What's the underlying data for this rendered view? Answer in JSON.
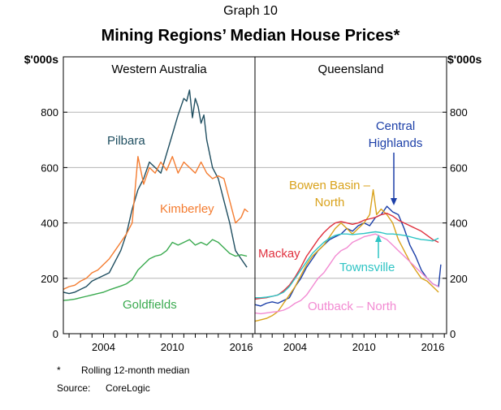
{
  "graph_number": "Graph 10",
  "title": "Mining Regions’ Median House Prices*",
  "footnote_mark": "*",
  "footnote_text": "Rolling 12-month median",
  "source_label": "Source:",
  "source_text": "CoreLogic",
  "chart_data": [
    {
      "type": "line",
      "panel": "Western Australia",
      "ylabel": "$'000s",
      "ylim": [
        0,
        1000
      ],
      "yticks": [
        0,
        200,
        400,
        600,
        800
      ],
      "xlim": [
        2000.5,
        2017.2
      ],
      "xticks": [
        2004,
        2010,
        2016
      ],
      "grid": true,
      "series": [
        {
          "name": "Pilbara",
          "color": "#1f4e60",
          "x": [
            2000.5,
            2001,
            2001.5,
            2002,
            2002.5,
            2003,
            2003.5,
            2004,
            2004.5,
            2005,
            2005.5,
            2006,
            2006.5,
            2007,
            2007.5,
            2008,
            2008.5,
            2009,
            2009.5,
            2010,
            2010.5,
            2011,
            2011.25,
            2011.5,
            2011.75,
            2012,
            2012.25,
            2012.5,
            2012.75,
            2013,
            2013.5,
            2014,
            2014.5,
            2015,
            2015.5,
            2016,
            2016.5
          ],
          "y": [
            150,
            145,
            150,
            160,
            170,
            190,
            200,
            210,
            220,
            260,
            300,
            360,
            450,
            520,
            560,
            620,
            600,
            580,
            650,
            720,
            790,
            850,
            840,
            880,
            780,
            850,
            820,
            760,
            790,
            700,
            600,
            560,
            480,
            400,
            300,
            270,
            240
          ]
        },
        {
          "name": "Kimberley",
          "color": "#f47c30",
          "x": [
            2000.5,
            2001,
            2001.5,
            2002,
            2002.5,
            2003,
            2003.5,
            2004,
            2004.5,
            2005,
            2005.5,
            2006,
            2006.5,
            2007,
            2007.5,
            2008,
            2008.5,
            2009,
            2009.5,
            2010,
            2010.5,
            2011,
            2011.5,
            2012,
            2012.5,
            2013,
            2013.5,
            2014,
            2014.5,
            2015,
            2015.5,
            2016,
            2016.3,
            2016.6
          ],
          "y": [
            160,
            170,
            175,
            190,
            200,
            220,
            230,
            250,
            270,
            300,
            330,
            360,
            400,
            640,
            540,
            600,
            580,
            620,
            590,
            640,
            580,
            620,
            600,
            580,
            620,
            580,
            560,
            570,
            560,
            480,
            400,
            420,
            450,
            440
          ]
        },
        {
          "name": "Goldfields",
          "color": "#3aaa4f",
          "x": [
            2000.5,
            2001,
            2001.5,
            2002,
            2002.5,
            2003,
            2003.5,
            2004,
            2004.5,
            2005,
            2005.5,
            2006,
            2006.5,
            2007,
            2007.5,
            2008,
            2008.5,
            2009,
            2009.5,
            2010,
            2010.5,
            2011,
            2011.5,
            2012,
            2012.5,
            2013,
            2013.5,
            2014,
            2014.5,
            2015,
            2015.5,
            2016,
            2016.5
          ],
          "y": [
            120,
            122,
            125,
            130,
            135,
            140,
            145,
            150,
            158,
            165,
            172,
            180,
            195,
            230,
            250,
            270,
            280,
            285,
            300,
            330,
            320,
            330,
            340,
            320,
            330,
            320,
            340,
            330,
            310,
            290,
            280,
            285,
            280
          ]
        }
      ],
      "annotations": [
        {
          "text": "Pilbara",
          "color": "#1f4e60"
        },
        {
          "text": "Kimberley",
          "color": "#f47c30"
        },
        {
          "text": "Goldfields",
          "color": "#3aaa4f"
        }
      ]
    },
    {
      "type": "line",
      "panel": "Queensland",
      "ylabel": "$'000s",
      "ylim": [
        0,
        1000
      ],
      "yticks": [
        0,
        200,
        400,
        600,
        800
      ],
      "xlim": [
        2000.5,
        2017.2
      ],
      "xticks": [
        2004,
        2010,
        2016
      ],
      "grid": true,
      "series": [
        {
          "name": "Central Highlands",
          "color": "#1c3fa8",
          "x": [
            2000.5,
            2001,
            2001.5,
            2002,
            2002.5,
            2003,
            2003.5,
            2004,
            2004.5,
            2005,
            2005.5,
            2006,
            2006.5,
            2007,
            2007.5,
            2008,
            2008.5,
            2009,
            2009.5,
            2010,
            2010.5,
            2011,
            2011.5,
            2012,
            2012.5,
            2013,
            2013.5,
            2014,
            2014.5,
            2015,
            2015.5,
            2016,
            2016.5,
            2016.7
          ],
          "y": [
            105,
            100,
            110,
            115,
            110,
            120,
            130,
            170,
            200,
            240,
            270,
            300,
            320,
            340,
            350,
            360,
            380,
            370,
            390,
            400,
            390,
            420,
            430,
            460,
            440,
            430,
            380,
            320,
            280,
            230,
            200,
            180,
            170,
            250
          ]
        },
        {
          "name": "Bowen Basin – North",
          "color": "#d9a21b",
          "x": [
            2000.5,
            2001,
            2001.5,
            2002,
            2002.5,
            2003,
            2003.5,
            2004,
            2004.5,
            2005,
            2005.5,
            2006,
            2006.5,
            2007,
            2007.5,
            2008,
            2008.5,
            2009,
            2009.5,
            2010,
            2010.5,
            2010.8,
            2011.1,
            2011.5,
            2012,
            2012.5,
            2013,
            2013.5,
            2014,
            2014.5,
            2015,
            2015.5,
            2016,
            2016.5
          ],
          "y": [
            45,
            50,
            55,
            65,
            80,
            110,
            140,
            170,
            210,
            250,
            280,
            300,
            320,
            350,
            380,
            400,
            380,
            360,
            380,
            400,
            430,
            520,
            430,
            450,
            430,
            400,
            340,
            300,
            260,
            230,
            200,
            190,
            170,
            150
          ]
        },
        {
          "name": "Mackay",
          "color": "#e0313e",
          "x": [
            2000.5,
            2001,
            2001.5,
            2002,
            2002.5,
            2003,
            2003.5,
            2004,
            2004.5,
            2005,
            2005.5,
            2006,
            2006.5,
            2007,
            2007.5,
            2008,
            2008.5,
            2009,
            2009.5,
            2010,
            2010.5,
            2011,
            2011.5,
            2012,
            2012.5,
            2013,
            2013.5,
            2014,
            2014.5,
            2015,
            2015.5,
            2016,
            2016.5
          ],
          "y": [
            125,
            128,
            130,
            135,
            140,
            155,
            175,
            205,
            240,
            280,
            310,
            340,
            365,
            385,
            400,
            405,
            400,
            395,
            400,
            410,
            415,
            420,
            430,
            435,
            425,
            410,
            400,
            390,
            380,
            370,
            355,
            340,
            330
          ]
        },
        {
          "name": "Townsville",
          "color": "#2ec4c4",
          "x": [
            2000.5,
            2001,
            2001.5,
            2002,
            2002.5,
            2003,
            2003.5,
            2004,
            2004.5,
            2005,
            2005.5,
            2006,
            2006.5,
            2007,
            2007.5,
            2008,
            2008.5,
            2009,
            2009.5,
            2010,
            2010.5,
            2011,
            2011.5,
            2012,
            2012.5,
            2013,
            2013.5,
            2014,
            2014.5,
            2015,
            2015.5,
            2016,
            2016.5
          ],
          "y": [
            130,
            130,
            132,
            135,
            140,
            150,
            170,
            200,
            230,
            260,
            290,
            310,
            330,
            345,
            355,
            360,
            360,
            358,
            360,
            362,
            365,
            368,
            365,
            360,
            360,
            358,
            355,
            350,
            345,
            340,
            338,
            335,
            345
          ]
        },
        {
          "name": "Outback – North",
          "color": "#f28ad2",
          "x": [
            2000.5,
            2001,
            2001.5,
            2002,
            2002.5,
            2003,
            2003.5,
            2004,
            2004.5,
            2005,
            2005.5,
            2006,
            2006.5,
            2007,
            2007.5,
            2008,
            2008.5,
            2009,
            2009.5,
            2010,
            2010.5,
            2011,
            2011.5,
            2012,
            2012.5,
            2013,
            2013.5,
            2014,
            2014.5,
            2015,
            2015.5,
            2016,
            2016.5
          ],
          "y": [
            75,
            72,
            75,
            78,
            80,
            85,
            95,
            110,
            120,
            140,
            170,
            200,
            220,
            250,
            280,
            300,
            310,
            330,
            340,
            350,
            355,
            360,
            350,
            340,
            320,
            300,
            280,
            260,
            240,
            220,
            200,
            180,
            170
          ]
        }
      ],
      "annotations": [
        {
          "text": "Central",
          "color": "#1c3fa8"
        },
        {
          "text": "Highlands",
          "color": "#1c3fa8"
        },
        {
          "text": "Bowen Basin –",
          "color": "#d9a21b"
        },
        {
          "text": "North",
          "color": "#d9a21b"
        },
        {
          "text": "Mackay",
          "color": "#e0313e"
        },
        {
          "text": "Townsville",
          "color": "#2ec4c4"
        },
        {
          "text": "Outback – North",
          "color": "#f28ad2"
        }
      ]
    }
  ]
}
